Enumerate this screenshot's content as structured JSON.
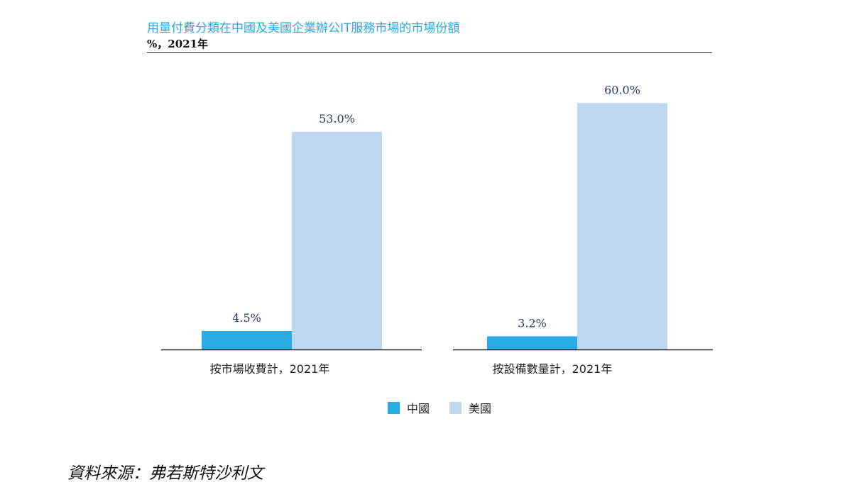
{
  "title": "用量付費分類在中國及美國企業辦公IT服務市場的市場份額",
  "subtitle": "%，2021年",
  "source": "資料來源：弗若斯特沙利文",
  "colors": {
    "title": "#29a9e0",
    "china": "#29ace3",
    "usa": "#bdd7ee",
    "axis": "#222222",
    "value_label": "#1f3a5f"
  },
  "chart_data": [
    {
      "type": "bar",
      "xlabel": "按市場收費計，2021年",
      "unit": "%",
      "ylim": [
        0,
        65
      ],
      "series": [
        {
          "name": "中國",
          "values": [
            4.5
          ],
          "labels": [
            "4.5%"
          ]
        },
        {
          "name": "美國",
          "values": [
            53.0
          ],
          "labels": [
            "53.0%"
          ]
        }
      ]
    },
    {
      "type": "bar",
      "xlabel": "按設備數量計，2021年",
      "unit": "%",
      "ylim": [
        0,
        65
      ],
      "series": [
        {
          "name": "中國",
          "values": [
            3.2
          ],
          "labels": [
            "3.2%"
          ]
        },
        {
          "name": "美國",
          "values": [
            60.0
          ],
          "labels": [
            "60.0%"
          ]
        }
      ]
    }
  ],
  "legend": {
    "items": [
      {
        "label": "中國",
        "color": "#29ace3"
      },
      {
        "label": "美國",
        "color": "#bdd7ee"
      }
    ]
  }
}
